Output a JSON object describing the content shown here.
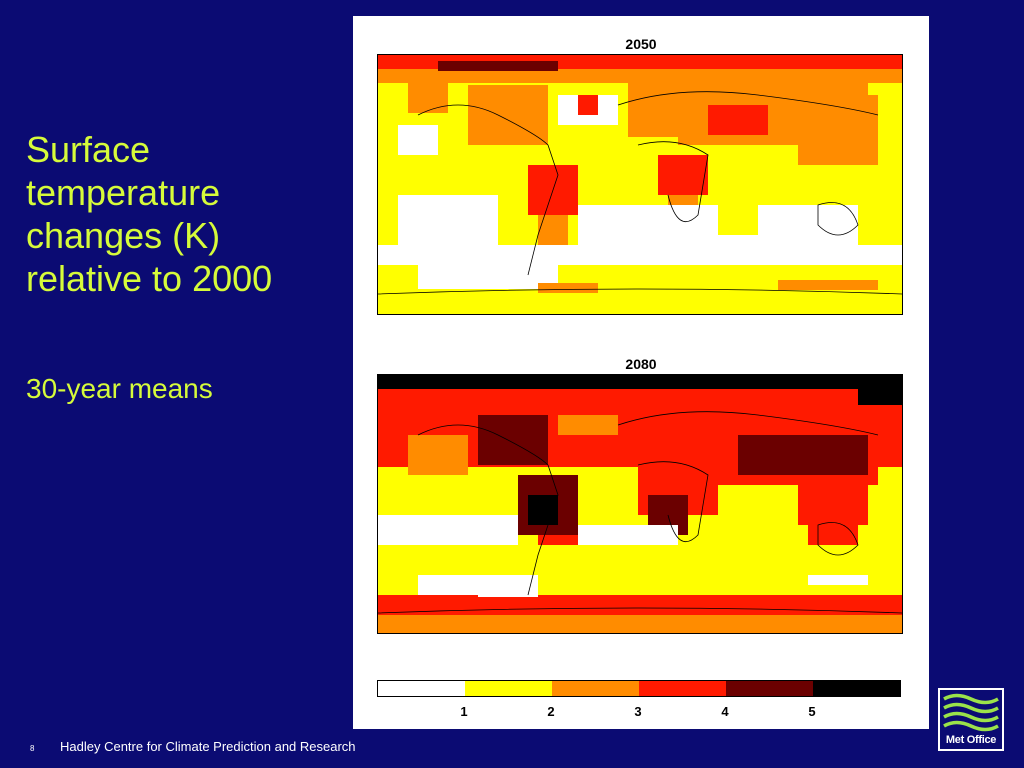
{
  "slide": {
    "title": "Surface temperature changes (K) relative to 2000",
    "subtitle": "30-year means"
  },
  "maps": [
    {
      "title": "2050",
      "colors": [
        "#ffffff",
        "#ffff00",
        "#ff8c00",
        "#ff1a00",
        "#6b0000",
        "#000000"
      ]
    },
    {
      "title": "2080",
      "colors": [
        "#ffffff",
        "#ffff00",
        "#ff8c00",
        "#ff1a00",
        "#6b0000",
        "#000000"
      ]
    }
  ],
  "colorbar": {
    "colors": [
      "#ffffff",
      "#ffff00",
      "#ff8c00",
      "#ff1a00",
      "#6b0000",
      "#000000"
    ],
    "ticks": [
      "1",
      "2",
      "3",
      "4",
      "5"
    ]
  },
  "footer": {
    "page_number": "8",
    "organization": "Hadley Centre for Climate Prediction and Research"
  },
  "logo": {
    "text": "Met Office",
    "icon": "met-office-waves-icon"
  }
}
